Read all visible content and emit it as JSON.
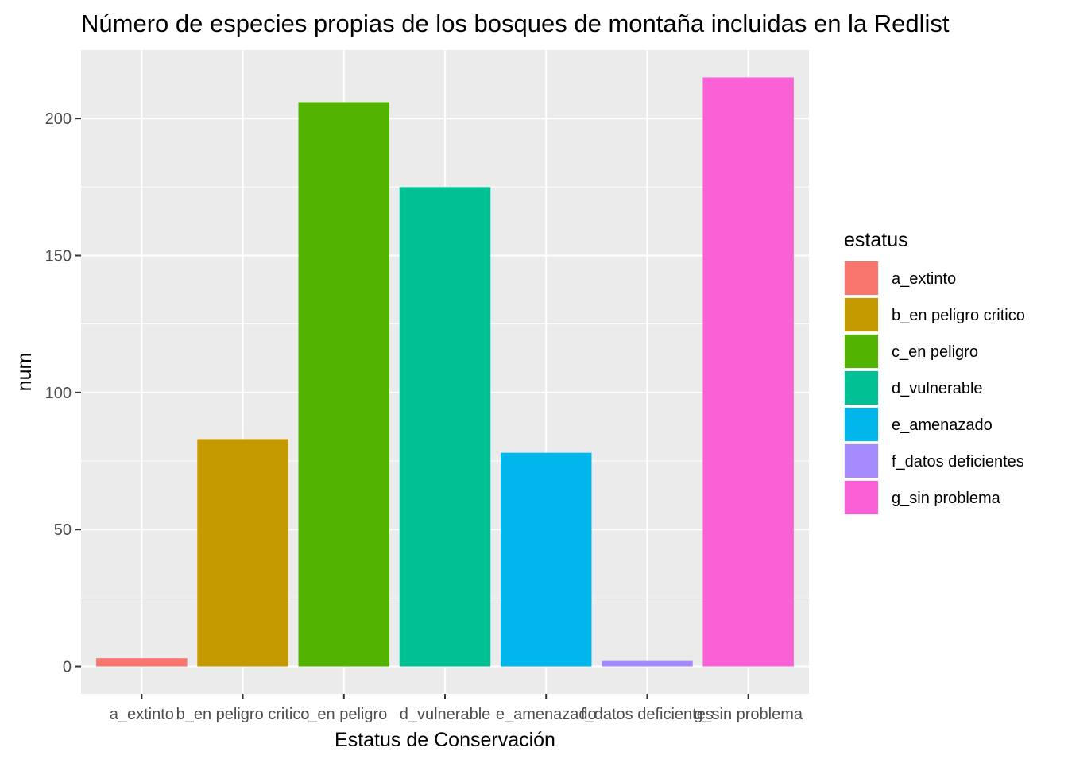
{
  "chart_data": {
    "type": "bar",
    "title": "Número de especies propias de los bosques de montaña incluidas en la Redlist",
    "xlabel": "Estatus de Conservación",
    "ylabel": "num",
    "categories": [
      "a_extinto",
      "b_en peligro critico",
      "c_en peligro",
      "d_vulnerable",
      "e_amenazado",
      "f_datos deficientes",
      "g_sin problema"
    ],
    "values": [
      3,
      83,
      206,
      175,
      78,
      2,
      215
    ],
    "colors": [
      "#F8766D",
      "#C49A00",
      "#53B400",
      "#00C094",
      "#00B6EB",
      "#A58AFF",
      "#FB61D7"
    ],
    "yticks": [
      0,
      50,
      100,
      150,
      200
    ],
    "ylim": [
      -10,
      225
    ],
    "grid": true,
    "legend": {
      "title": "estatus",
      "placement": "right",
      "entries": [
        "a_extinto",
        "b_en peligro critico",
        "c_en peligro",
        "d_vulnerable",
        "e_amenazado",
        "f_datos deficientes",
        "g_sin problema"
      ]
    }
  }
}
